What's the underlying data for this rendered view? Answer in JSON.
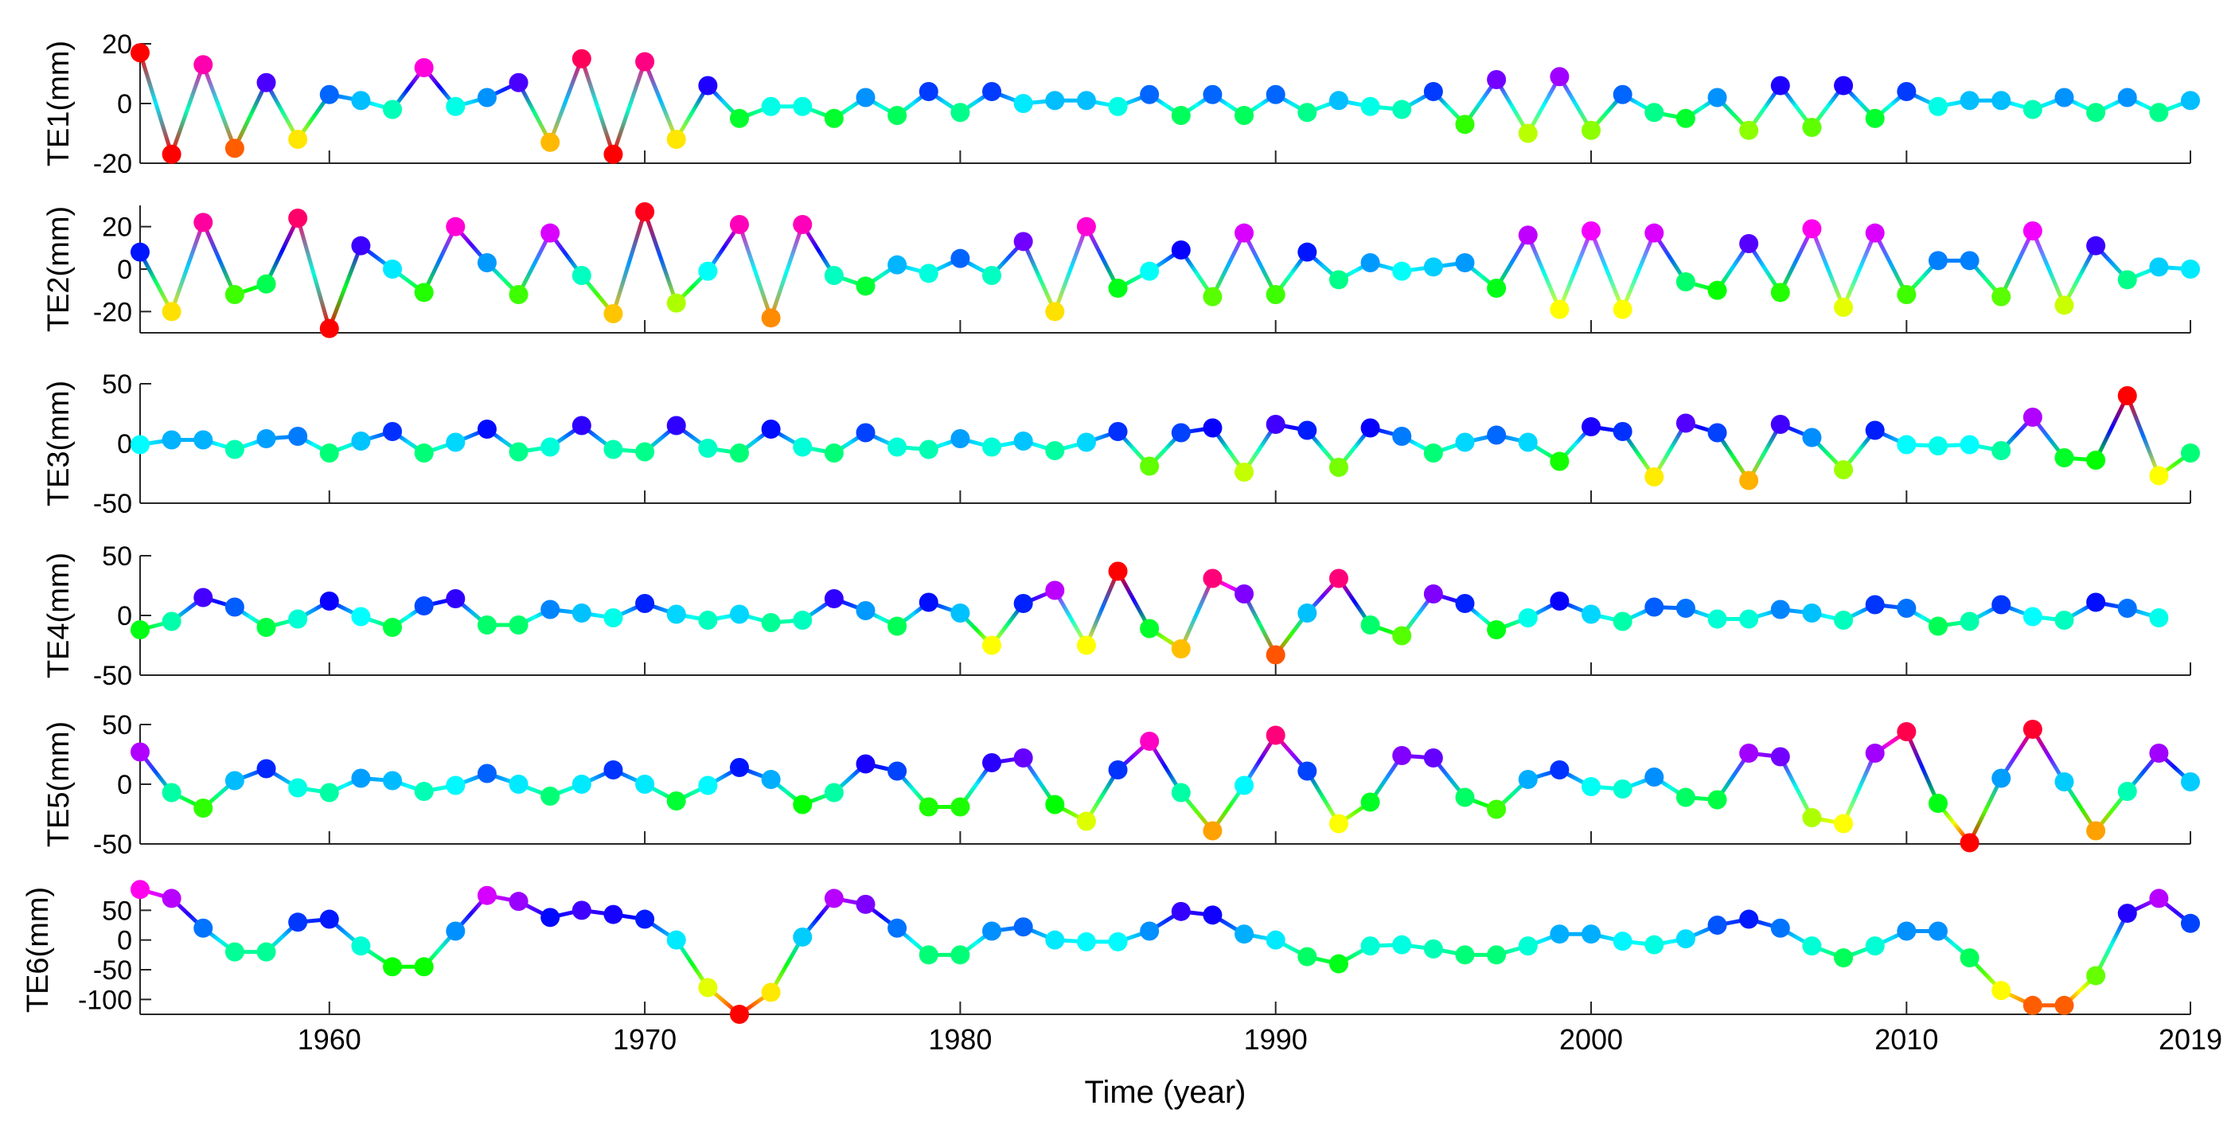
{
  "xlabel": "Time (year)",
  "x_axis": {
    "xlim": [
      1954,
      2019
    ],
    "ticks": [
      1960,
      1970,
      1980,
      1990,
      2000,
      2010,
      2019
    ]
  },
  "chart_data": [
    {
      "type": "line",
      "title": "",
      "ylabel": "TE1(mm)",
      "ylim": [
        -20,
        20
      ],
      "yticks": [
        -20,
        0,
        20
      ],
      "x_start": 1954,
      "values": [
        17,
        -17,
        13,
        -15,
        7,
        -12,
        3,
        1,
        -2,
        12,
        -1,
        2,
        7,
        -13,
        15,
        -17,
        14,
        -12,
        6,
        -5,
        -1,
        -1,
        -5,
        2,
        -4,
        4,
        -3,
        4,
        0,
        1,
        1,
        -1,
        3,
        -4,
        3,
        -4,
        3,
        -3,
        1,
        -1,
        -2,
        4,
        -7,
        8,
        -10,
        9,
        -9,
        3,
        -3,
        -5,
        2,
        -9,
        6,
        -8,
        6,
        -5,
        4,
        -1,
        1,
        1,
        -2,
        2,
        -3,
        2,
        -3,
        1
      ]
    },
    {
      "type": "line",
      "title": "",
      "ylabel": "TE2(mm)",
      "ylim": [
        -30,
        30
      ],
      "yticks": [
        -20,
        0,
        20
      ],
      "x_start": 1954,
      "values": [
        8,
        -20,
        22,
        -12,
        -7,
        24,
        -28,
        11,
        0,
        -11,
        20,
        3,
        -12,
        17,
        -3,
        -21,
        27,
        -16,
        -1,
        21,
        -23,
        21,
        -3,
        -8,
        2,
        -2,
        5,
        -3,
        13,
        -20,
        20,
        -9,
        -1,
        9,
        -13,
        17,
        -12,
        8,
        -5,
        3,
        -1,
        1,
        3,
        -9,
        16,
        -19,
        18,
        -19,
        17,
        -6,
        -10,
        12,
        -11,
        19,
        -18,
        17,
        -12,
        4,
        4,
        -13,
        18,
        -17,
        11,
        -5,
        1,
        0
      ]
    },
    {
      "type": "line",
      "title": "",
      "ylabel": "TE3(mm)",
      "ylim": [
        -50,
        50
      ],
      "yticks": [
        -50,
        0,
        50
      ],
      "x_start": 1954,
      "values": [
        -1,
        3,
        3,
        -5,
        4,
        6,
        -8,
        2,
        10,
        -8,
        1,
        12,
        -7,
        -3,
        15,
        -5,
        -7,
        15,
        -4,
        -8,
        12,
        -3,
        -8,
        9,
        -3,
        -5,
        4,
        -3,
        2,
        -6,
        1,
        10,
        -19,
        9,
        13,
        -24,
        16,
        11,
        -20,
        13,
        6,
        -8,
        1,
        7,
        1,
        -15,
        14,
        10,
        -28,
        17,
        9,
        -31,
        16,
        5,
        -22,
        11,
        -1,
        -2,
        -1,
        -6,
        22,
        -12,
        -14,
        40,
        -27,
        -8
      ]
    },
    {
      "type": "line",
      "title": "",
      "ylabel": "TE4(mm)",
      "ylim": [
        -50,
        50
      ],
      "yticks": [
        -50,
        0,
        50
      ],
      "x_start": 1954,
      "values": [
        -12,
        -5,
        15,
        7,
        -10,
        -3,
        12,
        -1,
        -10,
        8,
        14,
        -8,
        -8,
        5,
        2,
        -2,
        10,
        1,
        -4,
        1,
        -6,
        -4,
        14,
        4,
        -9,
        11,
        2,
        -25,
        10,
        21,
        -25,
        37,
        -11,
        -28,
        31,
        18,
        -33,
        2,
        31,
        -8,
        -17,
        18,
        10,
        -12,
        -2,
        12,
        1,
        -5,
        7,
        6,
        -3,
        -3,
        5,
        2,
        -4,
        9,
        6,
        -9,
        -5,
        9,
        -1,
        -4,
        11,
        6,
        -2
      ]
    },
    {
      "type": "line",
      "title": "",
      "ylabel": "TE5(mm)",
      "ylim": [
        -50,
        50
      ],
      "yticks": [
        -50,
        0,
        50
      ],
      "x_start": 1954,
      "values": [
        27,
        -7,
        -20,
        3,
        13,
        -3,
        -7,
        5,
        3,
        -6,
        -1,
        9,
        0,
        -10,
        0,
        12,
        0,
        -14,
        -1,
        14,
        4,
        -17,
        -7,
        17,
        11,
        -19,
        -19,
        18,
        22,
        -17,
        -31,
        12,
        36,
        -7,
        -39,
        -1,
        41,
        11,
        -33,
        -15,
        24,
        22,
        -11,
        -21,
        4,
        12,
        -2,
        -4,
        6,
        -11,
        -13,
        26,
        23,
        -28,
        -33,
        26,
        44,
        -16,
        -49,
        5,
        46,
        2,
        -39,
        -6,
        26,
        2
      ]
    },
    {
      "type": "line",
      "title": "",
      "ylabel": "TE6(mm)",
      "ylim": [
        -125,
        92
      ],
      "yticks": [
        -100,
        -50,
        0,
        50
      ],
      "x_start": 1954,
      "values": [
        85,
        70,
        20,
        -20,
        -20,
        30,
        35,
        -10,
        -45,
        -45,
        15,
        75,
        65,
        38,
        50,
        43,
        35,
        0,
        -80,
        -125,
        -88,
        5,
        70,
        60,
        20,
        -25,
        -25,
        15,
        22,
        0,
        -3,
        -3,
        15,
        48,
        42,
        10,
        0,
        -28,
        -40,
        -10,
        -8,
        -15,
        -25,
        -25,
        -10,
        10,
        10,
        -2,
        -8,
        2,
        25,
        35,
        20,
        -10,
        -30,
        -10,
        15,
        15,
        -30,
        -85,
        -110,
        -110,
        -60,
        45,
        70,
        28
      ]
    }
  ]
}
